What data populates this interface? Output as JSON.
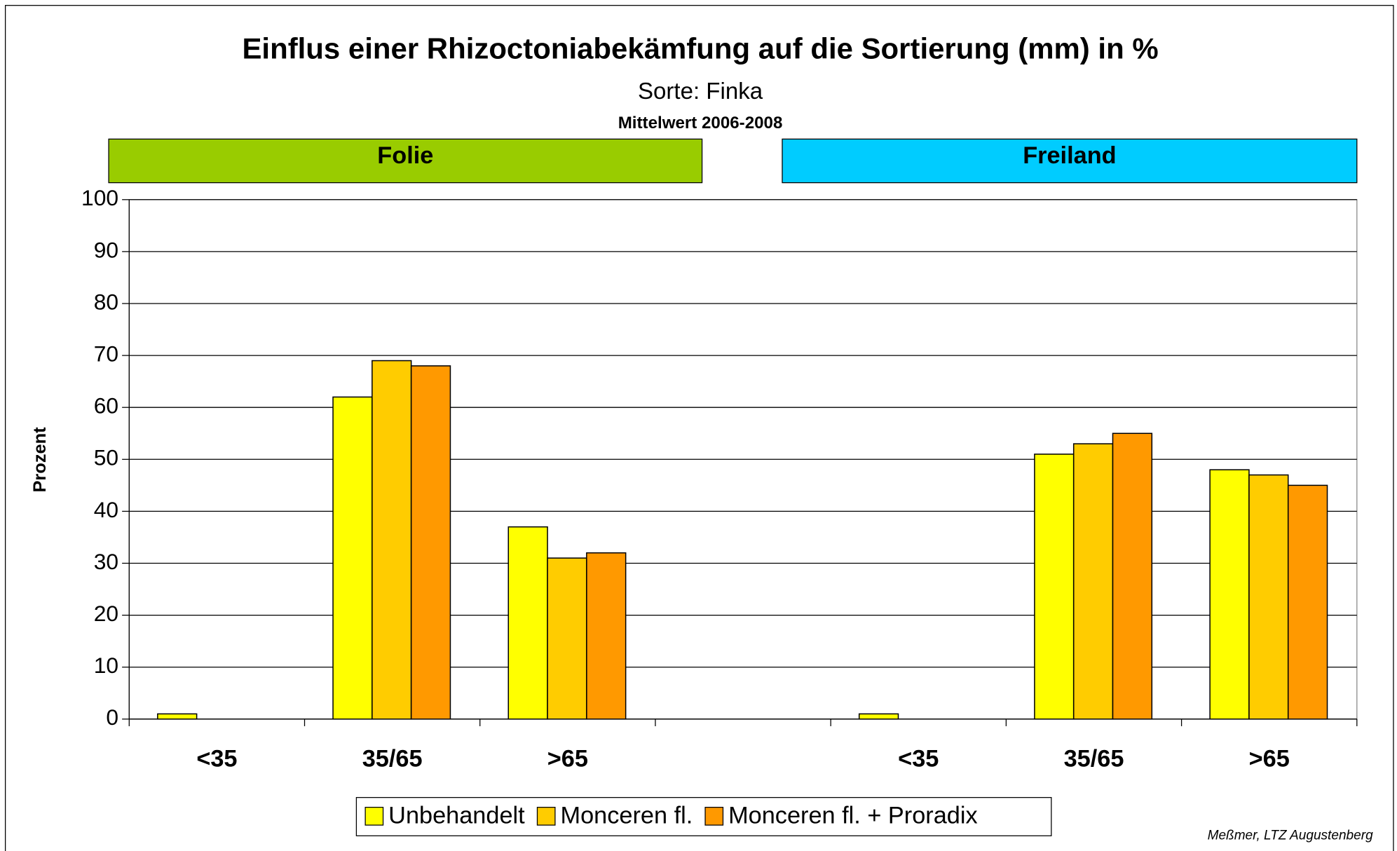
{
  "chart_data": {
    "type": "bar",
    "title": "Einflus einer Rhizoctoniabekämfung auf die Sortierung (mm) in %",
    "subtitle": "Sorte: Finka",
    "period": "Mittelwert 2006-2008",
    "groups": [
      {
        "label": "Folie",
        "color": "#99cc00"
      },
      {
        "label": "Freiland",
        "color": "#00ccff"
      }
    ],
    "categories": [
      "<35",
      "35/65",
      ">65",
      null,
      "<35",
      "35/65",
      ">65"
    ],
    "series": [
      {
        "name": "Unbehandelt",
        "color": "#ffff00",
        "values": [
          1,
          62,
          37,
          null,
          1,
          51,
          48
        ]
      },
      {
        "name": "Monceren fl.",
        "color": "#ffcc00",
        "values": [
          0,
          69,
          31,
          null,
          0,
          53,
          47
        ]
      },
      {
        "name": "Monceren fl. + Proradix",
        "color": "#ff9900",
        "values": [
          0,
          68,
          32,
          null,
          0,
          55,
          45
        ]
      }
    ],
    "ylabel": "Prozent",
    "ylim": [
      0,
      100
    ],
    "yticks": [
      0,
      10,
      20,
      30,
      40,
      50,
      60,
      70,
      80,
      90,
      100
    ],
    "grid": true,
    "legend": "bottom",
    "source": "Meßmer, LTZ Augustenberg"
  }
}
